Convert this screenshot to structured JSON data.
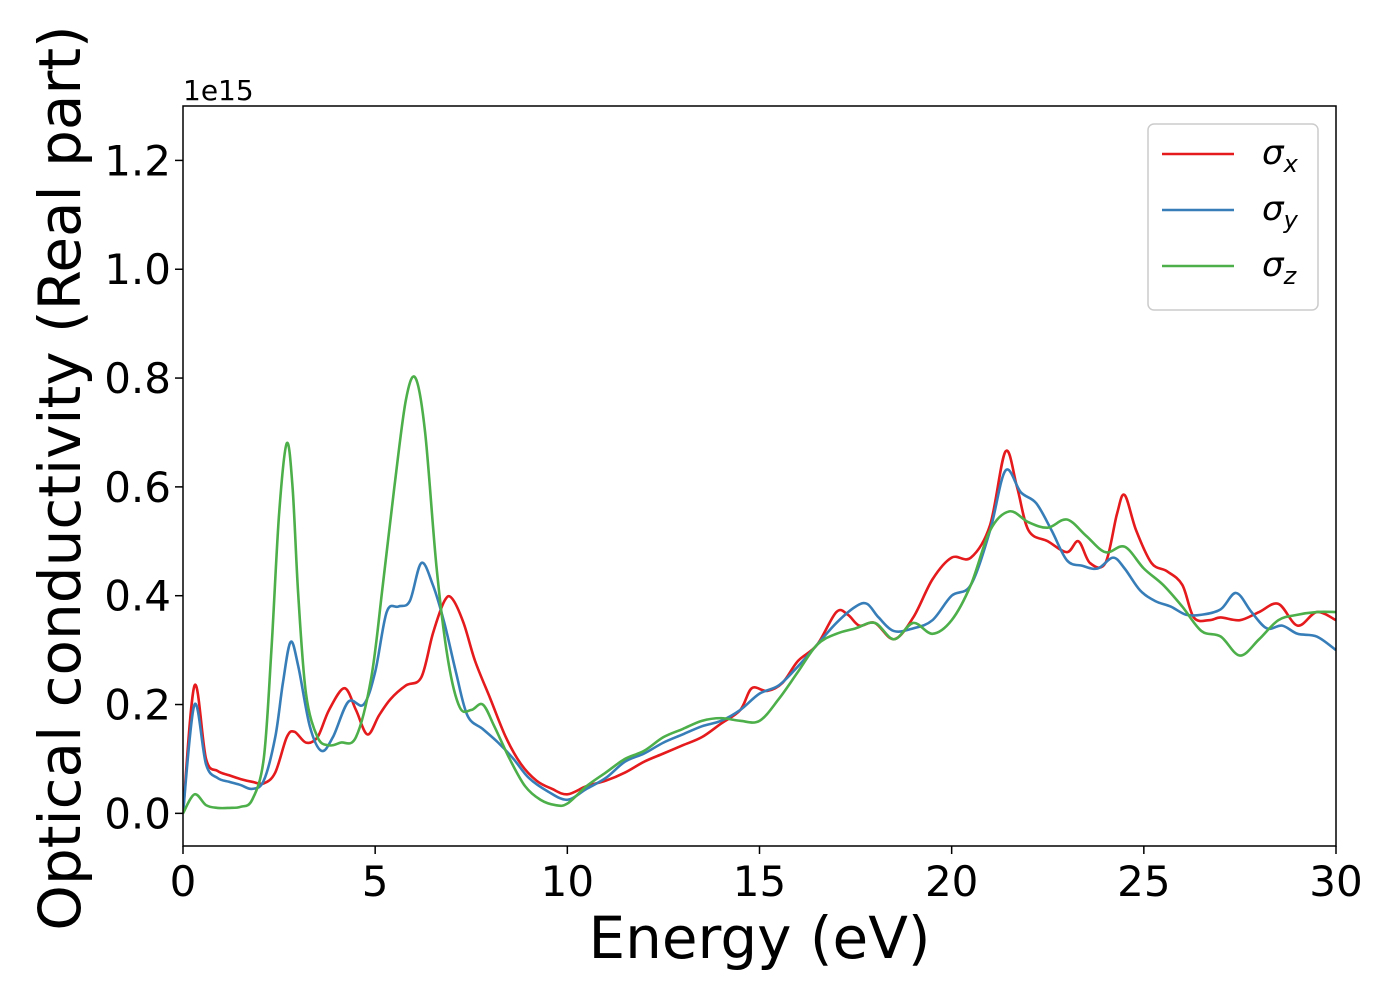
{
  "chart_data": {
    "type": "line",
    "title": "",
    "xlabel": "Energy (eV)",
    "ylabel": "Optical conductivity (Real part)",
    "y_offset_label": "1e15",
    "xlim": [
      0,
      30
    ],
    "ylim": [
      -0.06,
      1.3
    ],
    "x_ticks": [
      0,
      5,
      10,
      15,
      20,
      25,
      30
    ],
    "x_tick_labels": [
      "0",
      "5",
      "10",
      "15",
      "20",
      "25",
      "30"
    ],
    "y_ticks": [
      0.0,
      0.2,
      0.4,
      0.6,
      0.8,
      1.0,
      1.2
    ],
    "y_tick_labels": [
      "0.0",
      "0.2",
      "0.4",
      "0.6",
      "0.8",
      "1.0",
      "1.2"
    ],
    "grid": false,
    "legend_position": "top-right",
    "series": [
      {
        "name": "σx",
        "legend_base": "σ",
        "legend_sub": "x",
        "color": "#e41a1c",
        "x": [
          0,
          0.3,
          0.6,
          0.9,
          1.2,
          1.5,
          1.8,
          2.1,
          2.4,
          2.7,
          2.9,
          3.2,
          3.5,
          3.8,
          4.2,
          4.5,
          4.8,
          5.1,
          5.4,
          5.8,
          6.2,
          6.5,
          6.8,
          7.0,
          7.3,
          7.6,
          8.0,
          8.4,
          8.8,
          9.2,
          9.6,
          10.0,
          10.5,
          11.0,
          11.5,
          12.0,
          12.5,
          13.0,
          13.5,
          14.0,
          14.5,
          14.8,
          15.2,
          15.6,
          16.0,
          16.5,
          17.0,
          17.3,
          17.6,
          18.0,
          18.5,
          19.0,
          19.5,
          20.0,
          20.5,
          21.0,
          21.4,
          21.7,
          22.0,
          22.5,
          23.0,
          23.3,
          23.6,
          24.0,
          24.3,
          24.5,
          24.8,
          25.2,
          25.6,
          26.0,
          26.3,
          26.7,
          27.0,
          27.5,
          28.0,
          28.5,
          29.0,
          29.5,
          30.0
        ],
        "y": [
          0.0,
          0.235,
          0.1,
          0.078,
          0.07,
          0.063,
          0.058,
          0.055,
          0.075,
          0.14,
          0.15,
          0.13,
          0.14,
          0.19,
          0.23,
          0.19,
          0.145,
          0.18,
          0.21,
          0.235,
          0.25,
          0.33,
          0.39,
          0.395,
          0.35,
          0.28,
          0.21,
          0.14,
          0.09,
          0.06,
          0.045,
          0.035,
          0.05,
          0.06,
          0.075,
          0.095,
          0.11,
          0.125,
          0.14,
          0.165,
          0.19,
          0.23,
          0.225,
          0.24,
          0.28,
          0.31,
          0.37,
          0.365,
          0.345,
          0.35,
          0.32,
          0.36,
          0.43,
          0.47,
          0.47,
          0.53,
          0.665,
          0.6,
          0.52,
          0.5,
          0.48,
          0.5,
          0.46,
          0.46,
          0.55,
          0.585,
          0.52,
          0.46,
          0.445,
          0.42,
          0.36,
          0.355,
          0.36,
          0.355,
          0.37,
          0.385,
          0.345,
          0.37,
          0.355
        ]
      },
      {
        "name": "σy",
        "legend_base": "σ",
        "legend_sub": "y",
        "color": "#377eb8",
        "x": [
          0,
          0.3,
          0.6,
          0.9,
          1.2,
          1.5,
          1.8,
          2.1,
          2.4,
          2.6,
          2.8,
          3.0,
          3.3,
          3.6,
          3.9,
          4.3,
          4.7,
          5.0,
          5.3,
          5.6,
          5.9,
          6.2,
          6.5,
          6.8,
          7.1,
          7.4,
          7.8,
          8.2,
          8.6,
          9.0,
          9.5,
          10.0,
          10.5,
          11.0,
          11.5,
          12.0,
          12.5,
          13.0,
          13.5,
          14.0,
          14.5,
          15.0,
          15.5,
          16.0,
          16.5,
          17.0,
          17.5,
          17.8,
          18.1,
          18.5,
          19.0,
          19.5,
          20.0,
          20.5,
          21.0,
          21.4,
          21.8,
          22.2,
          22.6,
          23.0,
          23.4,
          23.8,
          24.2,
          24.5,
          24.9,
          25.3,
          25.7,
          26.1,
          26.5,
          27.0,
          27.4,
          27.8,
          28.2,
          28.6,
          29.0,
          29.5,
          30.0
        ],
        "y": [
          0.0,
          0.2,
          0.09,
          0.065,
          0.058,
          0.052,
          0.045,
          0.06,
          0.14,
          0.24,
          0.315,
          0.27,
          0.16,
          0.115,
          0.14,
          0.205,
          0.2,
          0.26,
          0.37,
          0.38,
          0.39,
          0.46,
          0.42,
          0.35,
          0.26,
          0.18,
          0.155,
          0.13,
          0.1,
          0.065,
          0.04,
          0.025,
          0.045,
          0.065,
          0.095,
          0.11,
          0.13,
          0.145,
          0.16,
          0.17,
          0.19,
          0.22,
          0.235,
          0.27,
          0.31,
          0.35,
          0.38,
          0.385,
          0.36,
          0.335,
          0.34,
          0.355,
          0.4,
          0.42,
          0.52,
          0.63,
          0.59,
          0.57,
          0.52,
          0.465,
          0.455,
          0.45,
          0.47,
          0.45,
          0.41,
          0.39,
          0.38,
          0.365,
          0.365,
          0.375,
          0.405,
          0.37,
          0.34,
          0.345,
          0.33,
          0.325,
          0.3
        ]
      },
      {
        "name": "σz",
        "legend_base": "σ",
        "legend_sub": "z",
        "color": "#4daf4a",
        "x": [
          0,
          0.3,
          0.6,
          0.9,
          1.2,
          1.5,
          1.8,
          2.1,
          2.3,
          2.5,
          2.7,
          2.85,
          3.0,
          3.2,
          3.5,
          3.8,
          4.1,
          4.5,
          4.9,
          5.2,
          5.5,
          5.8,
          6.05,
          6.3,
          6.6,
          6.9,
          7.2,
          7.5,
          7.8,
          8.1,
          8.5,
          8.9,
          9.3,
          9.7,
          10.0,
          10.5,
          11.0,
          11.5,
          12.0,
          12.5,
          13.0,
          13.5,
          14.0,
          14.5,
          15.0,
          15.5,
          16.0,
          16.5,
          17.0,
          17.5,
          18.0,
          18.5,
          19.0,
          19.5,
          20.0,
          20.5,
          21.0,
          21.5,
          22.0,
          22.5,
          23.0,
          23.5,
          24.0,
          24.5,
          25.0,
          25.5,
          26.0,
          26.5,
          27.0,
          27.5,
          28.0,
          28.5,
          29.0,
          29.5,
          30.0
        ],
        "y": [
          0.0,
          0.035,
          0.015,
          0.01,
          0.01,
          0.012,
          0.025,
          0.1,
          0.3,
          0.55,
          0.68,
          0.6,
          0.4,
          0.22,
          0.14,
          0.125,
          0.13,
          0.14,
          0.25,
          0.42,
          0.6,
          0.76,
          0.8,
          0.7,
          0.45,
          0.28,
          0.195,
          0.19,
          0.2,
          0.16,
          0.1,
          0.05,
          0.025,
          0.015,
          0.018,
          0.05,
          0.075,
          0.1,
          0.115,
          0.14,
          0.155,
          0.17,
          0.175,
          0.17,
          0.17,
          0.21,
          0.26,
          0.31,
          0.33,
          0.34,
          0.35,
          0.32,
          0.35,
          0.33,
          0.355,
          0.42,
          0.52,
          0.555,
          0.535,
          0.525,
          0.54,
          0.51,
          0.48,
          0.49,
          0.45,
          0.42,
          0.38,
          0.335,
          0.325,
          0.29,
          0.32,
          0.355,
          0.365,
          0.37,
          0.37
        ]
      }
    ]
  }
}
